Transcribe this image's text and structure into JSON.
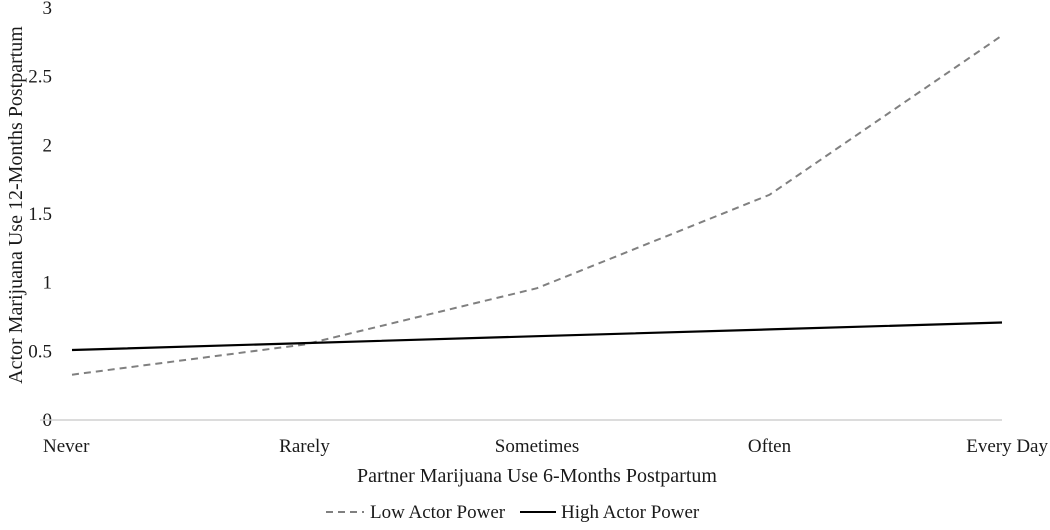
{
  "chart_data": {
    "type": "line",
    "categories": [
      "Never",
      "Rarely",
      "Sometimes",
      "Often",
      "Every Day"
    ],
    "series": [
      {
        "name": "Low Actor Power",
        "values": [
          0.33,
          0.55,
          0.96,
          1.64,
          2.8
        ],
        "color": "#808080",
        "dash": "dashed"
      },
      {
        "name": "High Actor Power",
        "values": [
          0.51,
          0.56,
          0.61,
          0.66,
          0.71
        ],
        "color": "#000000",
        "dash": "solid"
      }
    ],
    "xlabel": "Partner Marijuana Use 6-Months Postpartum",
    "ylabel": "Actor Marijuana Use 12-Months Postpartum",
    "ylim": [
      0,
      3
    ],
    "yticks": [
      "0",
      "0.5",
      "1",
      "1.5",
      "2",
      "2.5",
      "3"
    ],
    "grid": false,
    "legend_position": "bottom"
  }
}
